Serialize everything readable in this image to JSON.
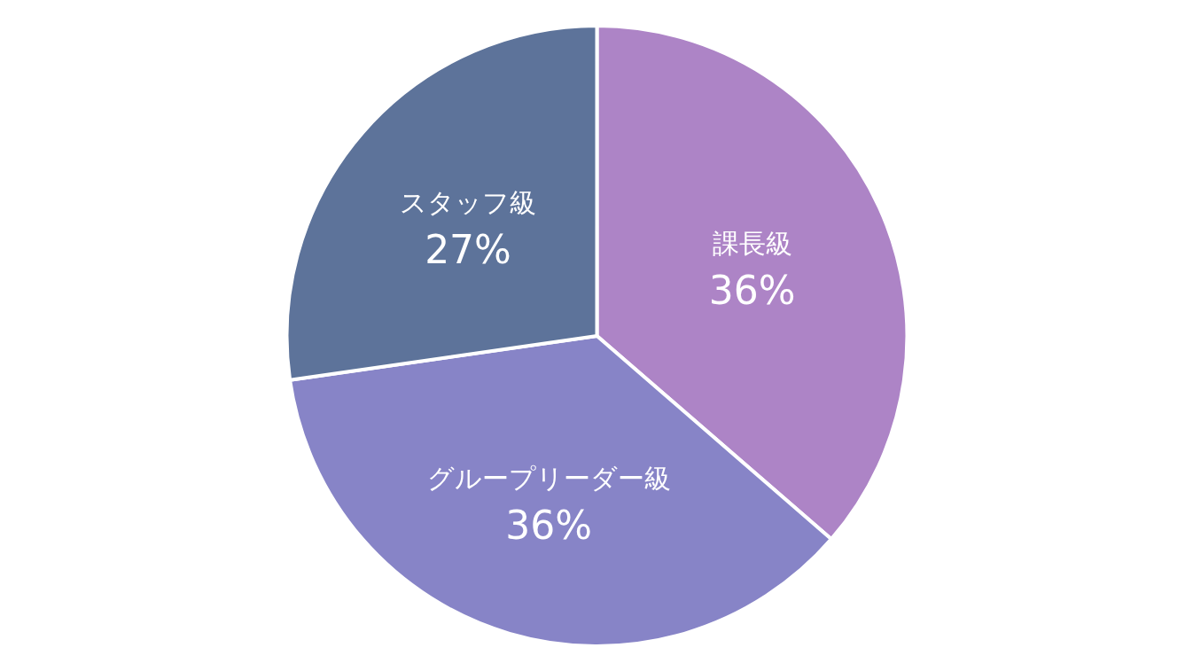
{
  "chart_data": {
    "type": "pie",
    "categories": [
      "課長級",
      "グループリーダー級",
      "スタッフ級"
    ],
    "values": [
      36,
      36,
      27
    ],
    "value_labels": [
      "36%",
      "36%",
      "27%"
    ],
    "colors": [
      "#ad84c6",
      "#8784c7",
      "#5d739a"
    ]
  }
}
